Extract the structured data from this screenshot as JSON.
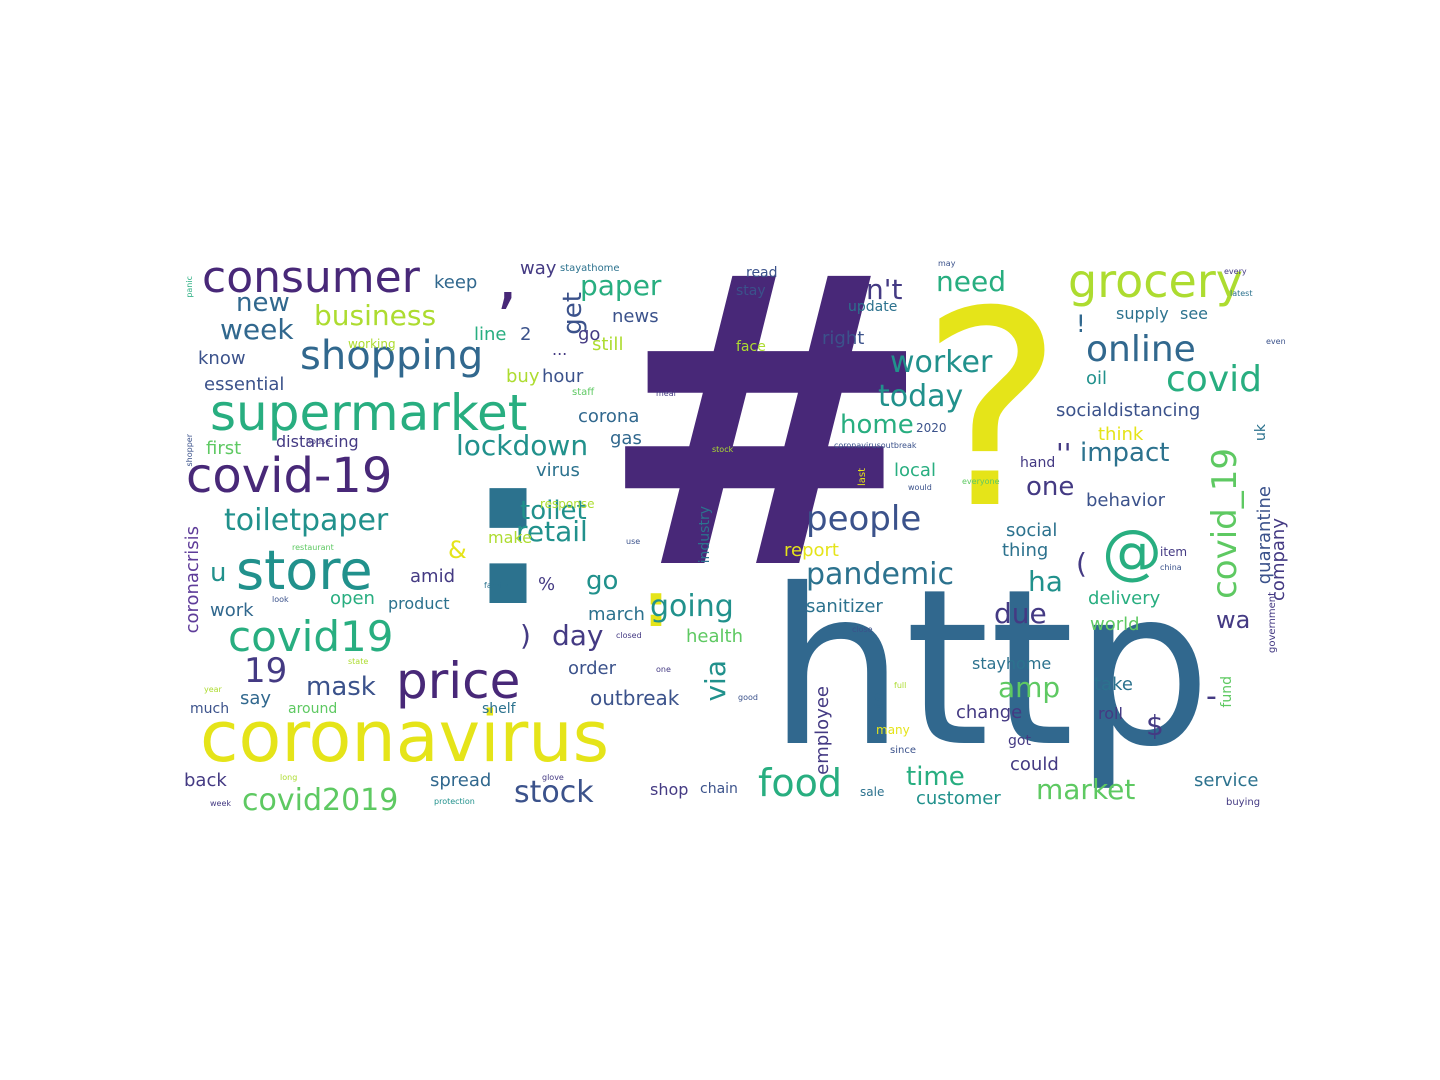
{
  "palette": {
    "dark_purple": "#482878",
    "purple": "#443a83",
    "indigo": "#3b528b",
    "blue": "#31688e",
    "steel": "#2c728e",
    "teal": "#21918c",
    "sea": "#28ae80",
    "green": "#5ec962",
    "lime": "#addc30",
    "yellow": "#e5e419"
  },
  "words": {
    "hash": "#",
    "http": "http",
    "question": "?",
    "coronavirus": "coronavirus",
    "colon": ":",
    "supermarket": "supermarket",
    "covid_hyphen_19": "covid-19",
    "store": "store",
    "price": "price",
    "covid19": "covid19",
    "consumer": "consumer",
    "grocery": "grocery",
    "comma": ",",
    "shopping": "shopping",
    "online": "online",
    "covid": "covid",
    "food": "food",
    "people": "people",
    "at": "@",
    "pandemic": "pandemic",
    "covid_underscore_19": "covid_19",
    "covid2019": "covid2019",
    "toiletpaper": "toiletpaper",
    "lockdown": "lockdown",
    "worker": "worker",
    "today": "today",
    "stock": "stock",
    "market": "market",
    "going": "going",
    "business": "business",
    "week": "week",
    "paper": "paper",
    "need": "need",
    "nt": "n't",
    "new": "new",
    "get": "get",
    "retail": "retail",
    "toilet": "toilet",
    "home": "home",
    "impact": "impact",
    "mask": "mask",
    "amp": "amp",
    "time": "time",
    "num19": "19",
    "via": "via",
    "day": "day",
    "go": "go",
    "ha": "ha",
    "due": "due",
    "one": "one",
    "wa": "wa",
    "dollar": "$",
    "s_apos": "'s",
    "u": "u",
    "open_paren": "(",
    "close_paren": ")",
    "dash": "-",
    "exclaim": "!",
    "quote": "''",
    "amp_sign": "&",
    "percent": "%",
    "dots": "...",
    "coronacrisis": "coronacrisis",
    "quarantine": "quarantine",
    "company": "company",
    "employee": "employee",
    "essential": "essential",
    "first": "first",
    "distancing": "distancing",
    "know": "know",
    "keep": "keep",
    "way": "way",
    "line": "line",
    "two": "2",
    "go2": "go",
    "news": "news",
    "still": "still",
    "buy": "buy",
    "hour": "hour",
    "corona": "corona",
    "gas": "gas",
    "virus": "virus",
    "make": "make",
    "amid": "amid",
    "work": "work",
    "product": "product",
    "open": "open",
    "march": "march",
    "order": "order",
    "outbreak": "outbreak",
    "health": "health",
    "say": "say",
    "much": "much",
    "around": "around",
    "shelf": "shelf",
    "back": "back",
    "spread": "spread",
    "shop": "shop",
    "chain": "chain",
    "customer": "customer",
    "could": "could",
    "got": "got",
    "change": "change",
    "take": "take",
    "roll": "roll",
    "service": "service",
    "sanitizer": "sanitizer",
    "world": "world",
    "delivery": "delivery",
    "stayhome": "stayhome",
    "report": "report",
    "socialdistancing": "socialdistancing",
    "supply": "supply",
    "see": "see",
    "oil": "oil",
    "think": "think",
    "hand": "hand",
    "behavior": "behavior",
    "social": "social",
    "thing": "thing",
    "item": "item",
    "right": "right",
    "update": "update",
    "face": "face",
    "read": "read",
    "stay": "stay",
    "local": "local",
    "industry": "industry",
    "fund": "fund",
    "uk": "uk",
    "government": "government",
    "response": "response",
    "year2020": "2020",
    "working": "working",
    "stayathome": "stayathome",
    "staff": "staff",
    "sale": "sale",
    "many": "many",
    "since": "since",
    "buying": "buying",
    "every": "every",
    "latest": "latest",
    "may": "may",
    "need2": "need",
    "close": "close",
    "closed": "closed",
    "glove": "glove",
    "protection": "protection",
    "long": "long",
    "week2": "week",
    "good": "good",
    "full": "full",
    "last": "last",
    "would": "would",
    "everyone": "everyone",
    "china": "china",
    "use": "use",
    "family": "family",
    "state": "state",
    "look": "look",
    "restaurant": "restaurant",
    "house": "house",
    "shopper": "shopper",
    "panic": "panic",
    "coronavirusoutbreak": "coronavirusoutbreak",
    "stock2": "stock",
    "meal": "meal",
    "year": "year",
    "even": "even",
    "free": "free",
    "new2": "new",
    "sinitizer2": "one",
    "million": "million",
    "level": "level",
    "time2": "time",
    "pay": "pay",
    "ca": "ca"
  }
}
